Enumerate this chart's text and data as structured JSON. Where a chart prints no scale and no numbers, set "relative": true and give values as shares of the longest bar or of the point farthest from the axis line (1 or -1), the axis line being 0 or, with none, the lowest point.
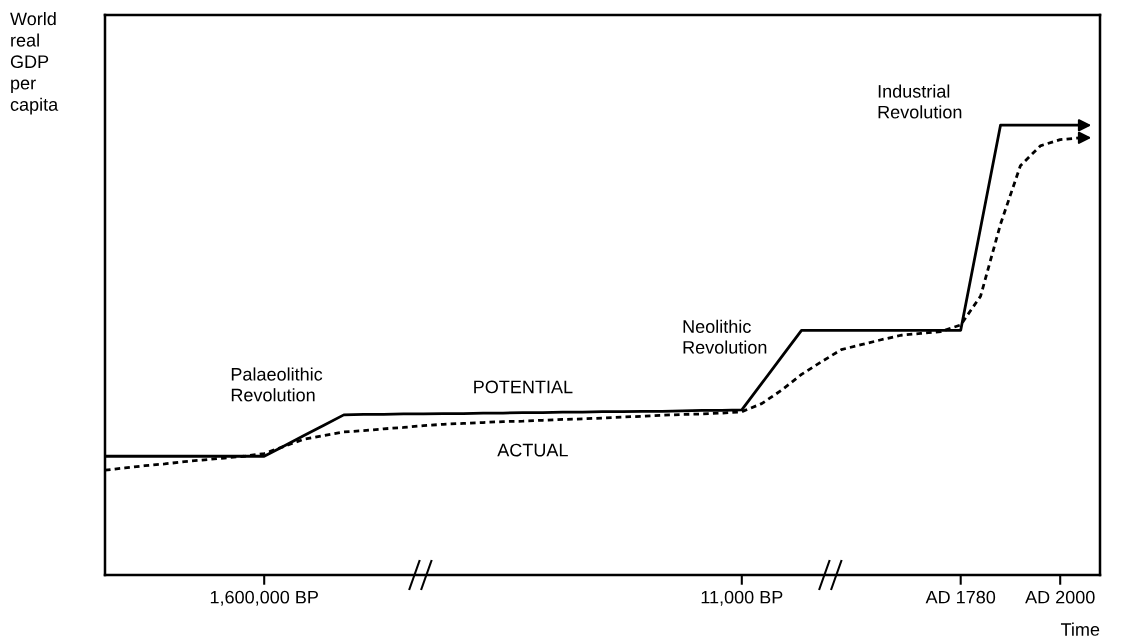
{
  "chart_data": {
    "type": "line",
    "relative": true,
    "xlabel": "Time",
    "ylabel": "World\nreal\nGDP\nper\ncapita",
    "categories": [
      null,
      null,
      null,
      null,
      null,
      null,
      null,
      null,
      "1,600,000 BP",
      null,
      null,
      null,
      null,
      null,
      null,
      null,
      null,
      null,
      null,
      null,
      null,
      null,
      null,
      null,
      null,
      null,
      null,
      null,
      null,
      null,
      null,
      null,
      "11,000 BP",
      null,
      null,
      null,
      null,
      null,
      null,
      null,
      null,
      null,
      null,
      "AD 1780",
      null,
      null,
      null,
      null,
      "AD 2000",
      null
    ],
    "series": [
      {
        "name": "POTENTIAL",
        "color": "#000000",
        "line_style": "solid",
        "values": [
          0.264,
          0.264,
          0.264,
          0.264,
          0.264,
          0.264,
          0.264,
          0.264,
          0.264,
          0.287,
          0.31,
          0.333,
          0.356,
          0.357,
          0.357,
          0.358,
          0.358,
          0.359,
          0.359,
          0.36,
          0.36,
          0.361,
          0.361,
          0.362,
          0.362,
          0.363,
          0.363,
          0.364,
          0.364,
          0.365,
          0.366,
          0.366,
          0.367,
          0.426,
          0.485,
          0.544,
          0.544,
          0.544,
          0.544,
          0.544,
          0.544,
          0.544,
          0.544,
          0.544,
          0.772,
          1,
          1,
          1,
          1,
          1
        ]
      },
      {
        "name": "ACTUAL",
        "color": "#000000",
        "line_style": "dotted",
        "values": [
          0.233,
          0.238,
          0.243,
          0.247,
          0.252,
          0.256,
          0.26,
          0.264,
          0.27,
          0.286,
          0.302,
          0.31,
          0.318,
          0.321,
          0.325,
          0.328,
          0.332,
          0.335,
          0.337,
          0.339,
          0.341,
          0.342,
          0.344,
          0.346,
          0.347,
          0.349,
          0.351,
          0.353,
          0.355,
          0.357,
          0.358,
          0.36,
          0.363,
          0.381,
          0.411,
          0.446,
          0.474,
          0.501,
          0.512,
          0.523,
          0.533,
          0.537,
          0.541,
          0.556,
          0.62,
          0.78,
          0.91,
          0.954,
          0.968,
          0.972
        ]
      }
    ],
    "annotations": [
      "Palaeolithic\nRevolution",
      "Neolithic\nRevolution",
      "Industrial\nRevolution"
    ],
    "legend": false,
    "grid": false,
    "marker": "none"
  }
}
